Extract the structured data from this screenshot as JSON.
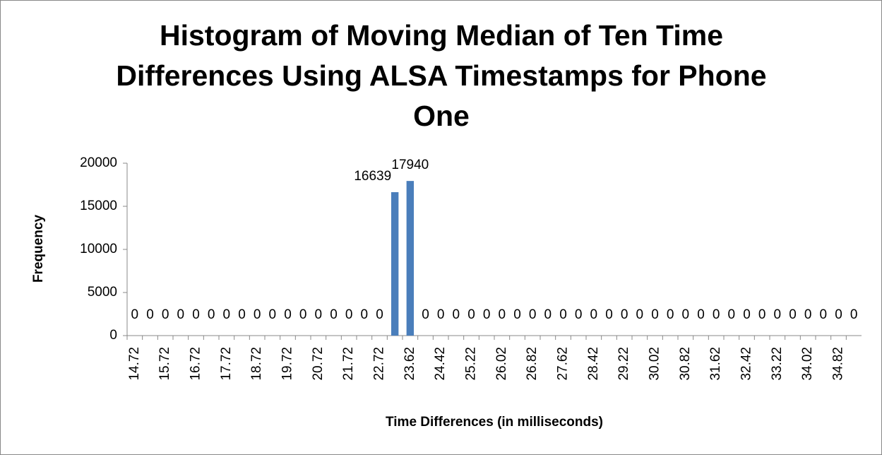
{
  "chart_data": {
    "type": "bar",
    "title": "Histogram of Moving Median of Ten Time Differences Using ALSA Timestamps for Phone One",
    "x_label": "Time Differences (in milliseconds)",
    "y_label": "Frequency",
    "categories": [
      "14.72",
      null,
      "15.72",
      null,
      "16.72",
      null,
      "17.72",
      null,
      "18.72",
      null,
      "19.72",
      null,
      "20.72",
      null,
      "21.72",
      null,
      "22.72",
      null,
      "23.62",
      null,
      "24.42",
      null,
      "25.22",
      null,
      "26.02",
      null,
      "26.82",
      null,
      "27.62",
      null,
      "28.42",
      null,
      "29.22",
      null,
      "30.02",
      null,
      "30.82",
      null,
      "31.62",
      null,
      "32.42",
      null,
      "33.22",
      null,
      "34.02",
      null,
      "34.82",
      null
    ],
    "values": [
      0,
      0,
      0,
      0,
      0,
      0,
      0,
      0,
      0,
      0,
      0,
      0,
      0,
      0,
      0,
      0,
      0,
      16639,
      17940,
      0,
      0,
      0,
      0,
      0,
      0,
      0,
      0,
      0,
      0,
      0,
      0,
      0,
      0,
      0,
      0,
      0,
      0,
      0,
      0,
      0,
      0,
      0,
      0,
      0,
      0,
      0,
      0,
      0
    ],
    "color": "#4a7ebb",
    "ylim": [
      0,
      20000
    ],
    "yticks": [
      0,
      5000,
      10000,
      15000,
      20000
    ],
    "grid": false
  }
}
